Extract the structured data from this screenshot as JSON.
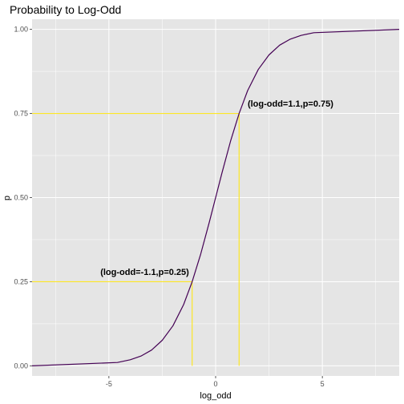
{
  "chart_data": {
    "type": "line",
    "title": "Probability to Log-Odd",
    "xlabel": "log_odd",
    "ylabel": "p",
    "xlim": [
      -8.6,
      8.6
    ],
    "ylim": [
      -0.03,
      1.03
    ],
    "x_ticks": [
      -5,
      0,
      5
    ],
    "x_tick_labels": [
      "-5",
      "0",
      "5"
    ],
    "y_ticks": [
      0.0,
      0.25,
      0.5,
      0.75,
      1.0
    ],
    "y_tick_labels": [
      "0.00",
      "0.25",
      "0.50",
      "0.75",
      "1.00"
    ],
    "grid": true,
    "series": [
      {
        "color": "#440154",
        "x": [
          -8.6,
          -4.6,
          -4.0,
          -3.5,
          -3.0,
          -2.5,
          -2.0,
          -1.5,
          -1.1,
          -0.7,
          -0.3,
          0.0,
          0.3,
          0.7,
          1.1,
          1.5,
          2.0,
          2.5,
          3.0,
          3.5,
          4.0,
          4.6,
          8.6
        ],
        "y": [
          0.0,
          0.01,
          0.018,
          0.029,
          0.047,
          0.076,
          0.119,
          0.182,
          0.25,
          0.332,
          0.426,
          0.5,
          0.574,
          0.668,
          0.75,
          0.818,
          0.881,
          0.924,
          0.953,
          0.971,
          0.982,
          0.99,
          1.0
        ]
      }
    ],
    "guides": [
      {
        "color": "#FDE725",
        "x": 1.1,
        "y": 0.75
      },
      {
        "color": "#FDE725",
        "x": -1.1,
        "y": 0.25
      }
    ],
    "annotations": [
      {
        "text": "(log-odd=1.1,p=0.75)",
        "x": 1.5,
        "y": 0.77
      },
      {
        "text": "(log-odd=-1.1,p=0.25)",
        "x": -5.4,
        "y": 0.27
      }
    ],
    "colors": {
      "panel_background": "#E5E5E5",
      "grid_major": "#FFFFFF",
      "curve": "#440154",
      "guide": "#FDE725"
    }
  }
}
